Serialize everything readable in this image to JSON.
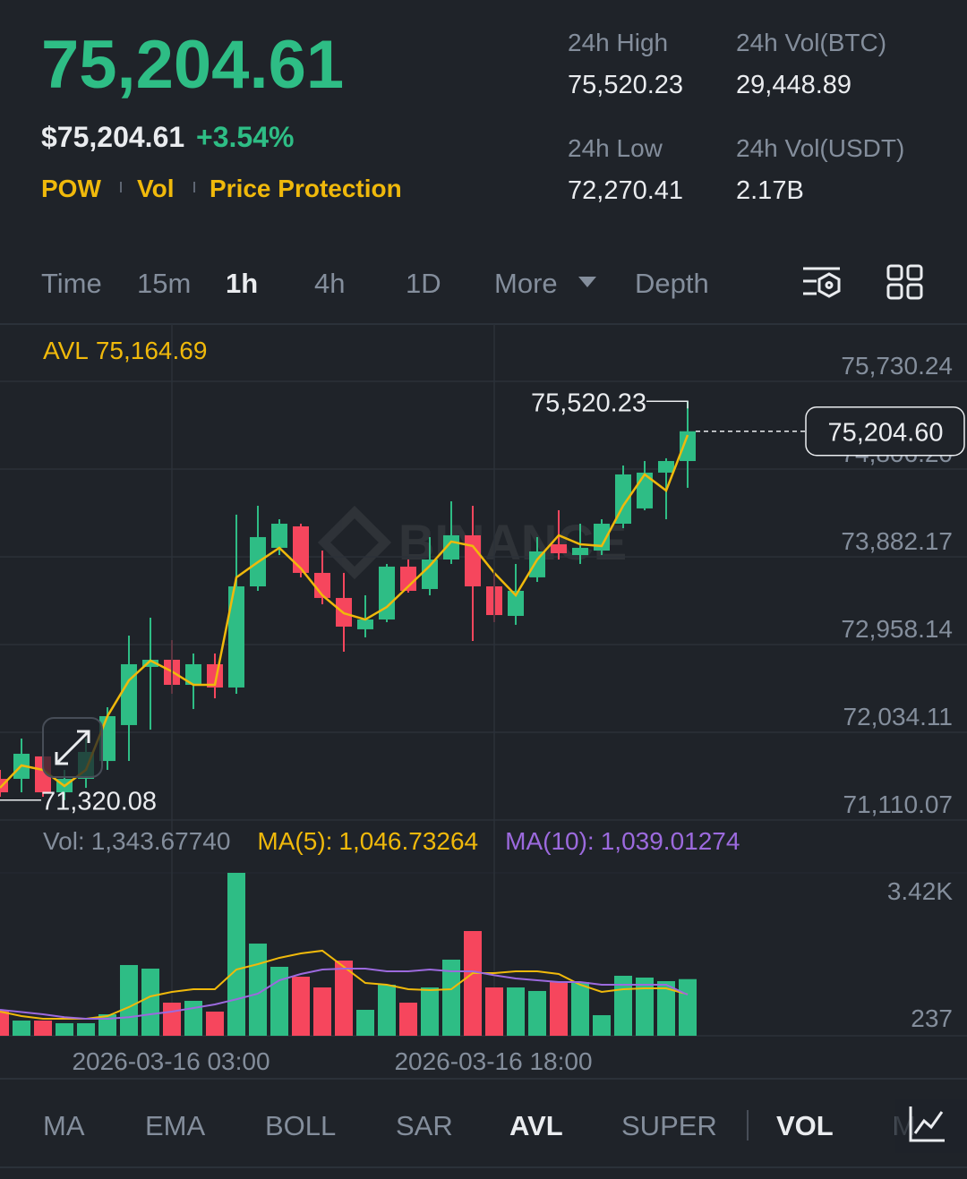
{
  "header": {
    "price": "75,204.61",
    "usd_price": "$75,204.61",
    "change": "+3.54%",
    "tags": [
      "POW",
      "Vol",
      "Price Protection"
    ],
    "stats": [
      {
        "label": "24h High",
        "value": "75,520.23"
      },
      {
        "label": "24h Vol(BTC)",
        "value": "29,448.89"
      },
      {
        "label": "24h Low",
        "value": "72,270.41"
      },
      {
        "label": "24h Vol(USDT)",
        "value": "2.17B"
      }
    ]
  },
  "tabs": {
    "items": [
      "Time",
      "15m",
      "1h",
      "4h",
      "1D",
      "More",
      "Depth"
    ],
    "active": "1h"
  },
  "indicators": {
    "items": [
      "MA",
      "EMA",
      "BOLL",
      "SAR",
      "AVL",
      "SUPER",
      "VOL",
      "M"
    ],
    "active": [
      "AVL",
      "VOL"
    ]
  },
  "chart_data": [
    {
      "type": "candlestick",
      "watermark": "BINANCE",
      "x": [
        "2026-03-15 19:00",
        "2026-03-15 20:00",
        "2026-03-15 21:00",
        "2026-03-15 22:00",
        "2026-03-15 23:00",
        "2026-03-16 00:00",
        "2026-03-16 01:00",
        "2026-03-16 02:00",
        "2026-03-16 03:00",
        "2026-03-16 04:00",
        "2026-03-16 05:00",
        "2026-03-16 06:00",
        "2026-03-16 07:00",
        "2026-03-16 08:00",
        "2026-03-16 09:00",
        "2026-03-16 10:00",
        "2026-03-16 11:00",
        "2026-03-16 12:00",
        "2026-03-16 13:00",
        "2026-03-16 14:00",
        "2026-03-16 15:00",
        "2026-03-16 16:00",
        "2026-03-16 17:00",
        "2026-03-16 18:00",
        "2026-03-16 19:00",
        "2026-03-16 20:00",
        "2026-03-16 21:00",
        "2026-03-16 22:00",
        "2026-03-16 23:00",
        "2026-03-17 00:00",
        "2026-03-17 01:00",
        "2026-03-17 02:00",
        "2026-03-17 03:00"
      ],
      "open": [
        71544,
        71544,
        71780,
        71402,
        71544,
        71732,
        72110,
        72723,
        72798,
        72534,
        72751,
        72506,
        73571,
        73977,
        74203,
        73713,
        73449,
        73119,
        73222,
        73779,
        73543,
        73854,
        74109,
        73571,
        73260,
        73666,
        74014,
        73901,
        73948,
        74231,
        74392,
        74769,
        74891
      ],
      "high": [
        71638,
        71968,
        71827,
        71638,
        71968,
        72298,
        73053,
        73241,
        73005,
        72864,
        72864,
        74326,
        74420,
        74278,
        74231,
        73948,
        73713,
        73477,
        73807,
        73854,
        74090,
        74467,
        74420,
        73713,
        73807,
        74090,
        74373,
        74231,
        74278,
        74844,
        74891,
        74920,
        75520.23
      ],
      "low": [
        71355,
        71402,
        71355,
        71320.08,
        71449,
        71638,
        71732,
        72062,
        72440,
        72279,
        72392,
        72440,
        73524,
        73901,
        73666,
        73383,
        72883,
        73034,
        73194,
        73505,
        73477,
        73807,
        72996,
        73194,
        73166,
        73618,
        73854,
        73807,
        73901,
        74184,
        74373,
        74278,
        74609
      ],
      "close": [
        71402,
        71808,
        71402,
        71544,
        71827,
        72204,
        72751,
        72798,
        72534,
        72751,
        72506,
        73571,
        74090,
        74231,
        73713,
        73449,
        73147,
        73222,
        73779,
        73524,
        73854,
        74109,
        73571,
        73269,
        73524,
        73939,
        73920,
        73977,
        74231,
        74750,
        74769,
        74891,
        75204.6
      ],
      "up_color": "#2ebd85",
      "down_color": "#f6465d",
      "ylim": [
        71072.4,
        76333.7
      ],
      "yticks": [
        {
          "value": 75730.24,
          "label": "75,730.24"
        },
        {
          "value": 74806.2,
          "label": "74,806.20"
        },
        {
          "value": 73882.17,
          "label": "73,882.17"
        },
        {
          "value": 72958.14,
          "label": "72,958.14"
        },
        {
          "value": 72034.11,
          "label": "72,034.11"
        },
        {
          "value": 71110.07,
          "label": "71,110.07"
        }
      ],
      "grid": true,
      "overlays": [
        {
          "name": "AVL",
          "color": "#f0b90b",
          "value_label": "75,164.69",
          "values": [
            71449,
            71685,
            71638,
            71468,
            71638,
            72204,
            72581,
            72789,
            72675,
            72534,
            72534,
            73666,
            73826,
            73977,
            73760,
            73477,
            73288,
            73222,
            73354,
            73571,
            73788,
            74043,
            73996,
            73713,
            73477,
            73854,
            74109,
            74014,
            73996,
            74420,
            74750,
            74580,
            75164.69
          ]
        }
      ],
      "max_label": "75,520.23",
      "min_label": "71,320.08",
      "last_label": "75,204.60"
    },
    {
      "type": "bar",
      "name": "Vol:",
      "value_label": "1,343.67740",
      "x": [
        "2026-03-15 19:00",
        "2026-03-15 20:00",
        "2026-03-15 21:00",
        "2026-03-15 22:00",
        "2026-03-15 23:00",
        "2026-03-16 00:00",
        "2026-03-16 01:00",
        "2026-03-16 02:00",
        "2026-03-16 03:00",
        "2026-03-16 04:00",
        "2026-03-16 05:00",
        "2026-03-16 06:00",
        "2026-03-16 07:00",
        "2026-03-16 08:00",
        "2026-03-16 09:00",
        "2026-03-16 10:00",
        "2026-03-16 11:00",
        "2026-03-16 12:00",
        "2026-03-16 13:00",
        "2026-03-16 14:00",
        "2026-03-16 15:00",
        "2026-03-16 16:00",
        "2026-03-16 17:00",
        "2026-03-16 18:00",
        "2026-03-16 19:00",
        "2026-03-16 20:00",
        "2026-03-16 21:00",
        "2026-03-16 22:00",
        "2026-03-16 23:00",
        "2026-03-17 00:00",
        "2026-03-17 01:00",
        "2026-03-17 02:00",
        "2026-03-17 03:00"
      ],
      "values": [
        744,
        534,
        534,
        482,
        482,
        657,
        1619,
        1549,
        884,
        919,
        709,
        3420,
        2038,
        1584,
        1391,
        1181,
        1706,
        744,
        1234,
        884,
        1181,
        1724,
        2283,
        1181,
        1181,
        1112,
        1286,
        1286,
        639,
        1409,
        1374,
        1304,
        1343.6774
      ],
      "name_color": "#848e9c",
      "ylim": [
        237,
        3420
      ],
      "yticks": [
        {
          "value": 3420,
          "label": "3.42K"
        },
        237
      ],
      "xticks": [
        "2026-03-16 03:00",
        "2026-03-16 18:00"
      ],
      "grid": true,
      "series": [
        {
          "name": "MA(5):",
          "color": "#f0b90b",
          "value_label": "1,046.73264",
          "values": [
            709,
            622,
            569,
            569,
            569,
            622,
            797,
            1007,
            1094,
            1146,
            1146,
            1531,
            1636,
            1759,
            1846,
            1899,
            1584,
            1269,
            1234,
            1146,
            1129,
            1146,
            1461,
            1461,
            1496,
            1496,
            1444,
            1234,
            1094,
            1146,
            1164,
            1164,
            1046.73264
          ]
        },
        {
          "name": "MA(10):",
          "color": "#9c6ade",
          "value_label": "1,039.01274",
          "values": [
            744,
            700,
            657,
            600,
            569,
            569,
            600,
            657,
            709,
            780,
            849,
            950,
            1059,
            1321,
            1444,
            1531,
            1549,
            1549,
            1496,
            1496,
            1531,
            1496,
            1496,
            1420,
            1356,
            1321,
            1286,
            1286,
            1234,
            1234,
            1234,
            1234,
            1039.01274
          ]
        }
      ]
    }
  ]
}
